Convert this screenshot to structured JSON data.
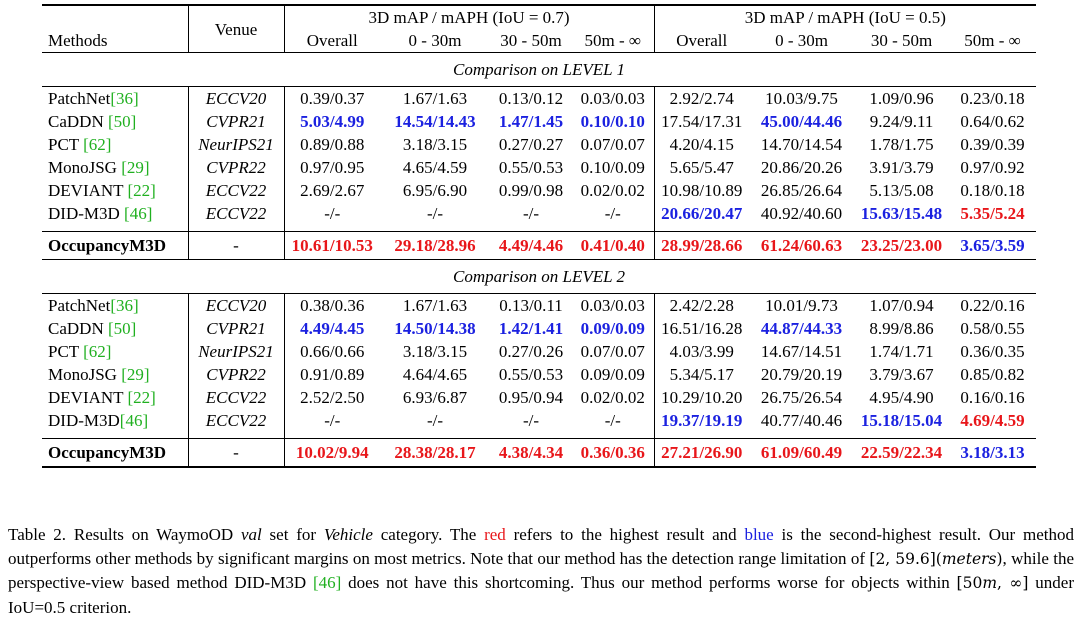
{
  "table": {
    "header": {
      "methods": "Methods",
      "venue": "Venue",
      "group07": "3D mAP / mAPH (IoU = 0.7)",
      "group05": "3D mAP / mAPH (IoU = 0.5)",
      "cols": [
        "Overall",
        "0 - 30m",
        "30 - 50m",
        "50m - ∞",
        "Overall",
        "0 - 30m",
        "30 - 50m",
        "50m - ∞"
      ]
    },
    "sections": [
      {
        "title": "Comparison on LEVEL 1",
        "rows": [
          {
            "name": "PatchNet",
            "cite": "[36]",
            "space": false,
            "venue": "ECCV20",
            "cells": [
              "0.39/0.37",
              "1.67/1.63",
              "0.13/0.12",
              "0.03/0.03",
              "2.92/2.74",
              "10.03/9.75",
              "1.09/0.96",
              "0.23/0.18"
            ],
            "styles": [
              "",
              "",
              "",
              "",
              "",
              "",
              "",
              ""
            ]
          },
          {
            "name": "CaDDN",
            "cite": "[50]",
            "space": true,
            "venue": "CVPR21",
            "cells": [
              "5.03/4.99",
              "14.54/14.43",
              "1.47/1.45",
              "0.10/0.10",
              "17.54/17.31",
              "45.00/44.46",
              "9.24/9.11",
              "0.64/0.62"
            ],
            "styles": [
              "blue",
              "blue",
              "blue",
              "blue",
              "",
              "blue",
              "",
              ""
            ]
          },
          {
            "name": "PCT",
            "cite": "[62]",
            "space": true,
            "venue": "NeurIPS21",
            "cells": [
              "0.89/0.88",
              "3.18/3.15",
              "0.27/0.27",
              "0.07/0.07",
              "4.20/4.15",
              "14.70/14.54",
              "1.78/1.75",
              "0.39/0.39"
            ],
            "styles": [
              "",
              "",
              "",
              "",
              "",
              "",
              "",
              ""
            ]
          },
          {
            "name": "MonoJSG",
            "cite": "[29]",
            "space": true,
            "venue": "CVPR22",
            "cells": [
              "0.97/0.95",
              "4.65/4.59",
              "0.55/0.53",
              "0.10/0.09",
              "5.65/5.47",
              "20.86/20.26",
              "3.91/3.79",
              "0.97/0.92"
            ],
            "styles": [
              "",
              "",
              "",
              "",
              "",
              "",
              "",
              ""
            ]
          },
          {
            "name": "DEVIANT",
            "cite": "[22]",
            "space": true,
            "venue": "ECCV22",
            "cells": [
              "2.69/2.67",
              "6.95/6.90",
              "0.99/0.98",
              "0.02/0.02",
              "10.98/10.89",
              "26.85/26.64",
              "5.13/5.08",
              "0.18/0.18"
            ],
            "styles": [
              "",
              "",
              "",
              "",
              "",
              "",
              "",
              ""
            ]
          },
          {
            "name": "DID-M3D",
            "cite": "[46]",
            "space": true,
            "venue": "ECCV22",
            "cells": [
              "-/-",
              "-/-",
              "-/-",
              "-/-",
              "20.66/20.47",
              "40.92/40.60",
              "15.63/15.48",
              "5.35/5.24"
            ],
            "styles": [
              "",
              "",
              "",
              "",
              "blue",
              "",
              "blue",
              "red"
            ]
          }
        ],
        "ours": {
          "name": "OccupancyM3D",
          "venue": "-",
          "cells": [
            "10.61/10.53",
            "29.18/28.96",
            "4.49/4.46",
            "0.41/0.40",
            "28.99/28.66",
            "61.24/60.63",
            "23.25/23.00",
            "3.65/3.59"
          ],
          "styles": [
            "red",
            "red",
            "red",
            "red",
            "red",
            "red",
            "red",
            "blue"
          ]
        }
      },
      {
        "title": "Comparison on LEVEL 2",
        "rows": [
          {
            "name": "PatchNet",
            "cite": "[36]",
            "space": false,
            "venue": "ECCV20",
            "cells": [
              "0.38/0.36",
              "1.67/1.63",
              "0.13/0.11",
              "0.03/0.03",
              "2.42/2.28",
              "10.01/9.73",
              "1.07/0.94",
              "0.22/0.16"
            ],
            "styles": [
              "",
              "",
              "",
              "",
              "",
              "",
              "",
              ""
            ]
          },
          {
            "name": "CaDDN",
            "cite": "[50]",
            "space": true,
            "venue": "CVPR21",
            "cells": [
              "4.49/4.45",
              "14.50/14.38",
              "1.42/1.41",
              "0.09/0.09",
              "16.51/16.28",
              "44.87/44.33",
              "8.99/8.86",
              "0.58/0.55"
            ],
            "styles": [
              "blue",
              "blue",
              "blue",
              "blue",
              "",
              "blue",
              "",
              ""
            ]
          },
          {
            "name": "PCT",
            "cite": "[62]",
            "space": true,
            "venue": "NeurIPS21",
            "cells": [
              "0.66/0.66",
              "3.18/3.15",
              "0.27/0.26",
              "0.07/0.07",
              "4.03/3.99",
              "14.67/14.51",
              "1.74/1.71",
              "0.36/0.35"
            ],
            "styles": [
              "",
              "",
              "",
              "",
              "",
              "",
              "",
              ""
            ]
          },
          {
            "name": "MonoJSG",
            "cite": "[29]",
            "space": true,
            "venue": "CVPR22",
            "cells": [
              "0.91/0.89",
              "4.64/4.65",
              "0.55/0.53",
              "0.09/0.09",
              "5.34/5.17",
              "20.79/20.19",
              "3.79/3.67",
              "0.85/0.82"
            ],
            "styles": [
              "",
              "",
              "",
              "",
              "",
              "",
              "",
              ""
            ]
          },
          {
            "name": "DEVIANT",
            "cite": "[22]",
            "space": true,
            "venue": "ECCV22",
            "cells": [
              "2.52/2.50",
              "6.93/6.87",
              "0.95/0.94",
              "0.02/0.02",
              "10.29/10.20",
              "26.75/26.54",
              "4.95/4.90",
              "0.16/0.16"
            ],
            "styles": [
              "",
              "",
              "",
              "",
              "",
              "",
              "",
              ""
            ]
          },
          {
            "name": "DID-M3D",
            "cite": "[46]",
            "space": false,
            "venue": "ECCV22",
            "cells": [
              "-/-",
              "-/-",
              "-/-",
              "-/-",
              "19.37/19.19",
              "40.77/40.46",
              "15.18/15.04",
              "4.69/4.59"
            ],
            "styles": [
              "",
              "",
              "",
              "",
              "blue",
              "",
              "blue",
              "red"
            ]
          }
        ],
        "ours": {
          "name": "OccupancyM3D",
          "venue": "-",
          "cells": [
            "10.02/9.94",
            "28.38/28.17",
            "4.38/4.34",
            "0.36/0.36",
            "27.21/26.90",
            "61.09/60.49",
            "22.59/22.34",
            "3.18/3.13"
          ],
          "styles": [
            "red",
            "red",
            "red",
            "red",
            "red",
            "red",
            "red",
            "blue"
          ]
        }
      }
    ]
  },
  "caption": {
    "label": "Table 2.",
    "t1": " Results on WaymoOD ",
    "val": "val",
    "t2": " set for ",
    "vehicle": "Vehicle",
    "t3": " category. The ",
    "red_word": "red",
    "t4": " refers to the highest result and ",
    "blue_word": "blue",
    "t5": " is the second-highest result. Our method outperforms other methods by significant margins on most metrics. Note that our method has the detection range limitation of ",
    "range_open": "[2, 59.6](",
    "range_unit": "meters",
    "range_close": ")",
    "t6": ", while the perspective-view based method DID-M3D ",
    "cite": "[46]",
    "t7": " does not have this shortcoming. Thus our method performs worse for objects within ",
    "range2_open": "[50",
    "range2_m": "m",
    "range2_close": ", ∞]",
    "t8": " under IoU=0.5 criterion."
  },
  "colors": {
    "highest": "#e8161a",
    "second": "#1b21e0",
    "citation": "#20b020"
  }
}
